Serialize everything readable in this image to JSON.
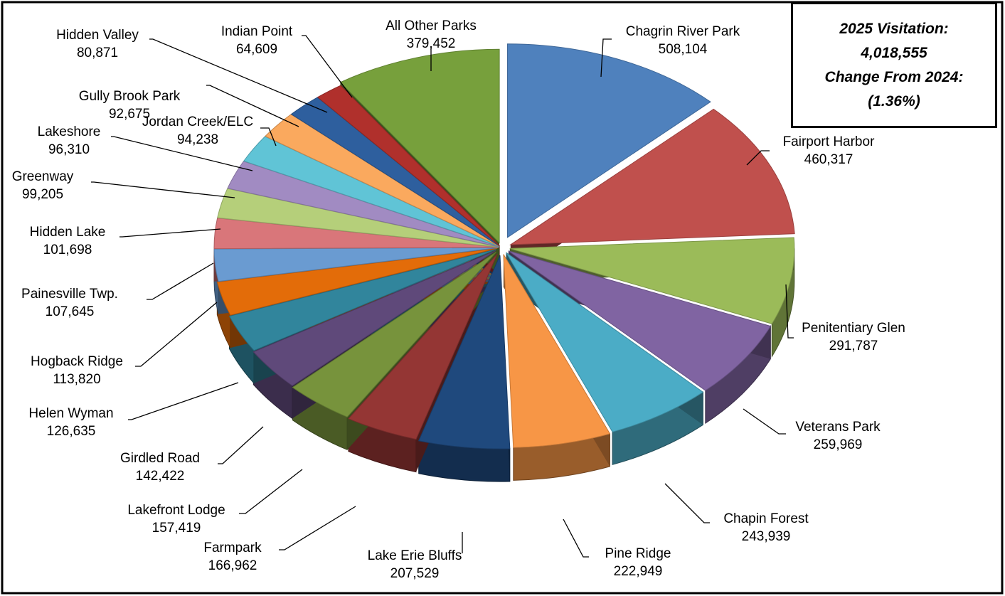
{
  "chart_data": {
    "type": "pie",
    "variant": "3d-exploded",
    "grid": false,
    "legend": "none",
    "slices": [
      {
        "label": "Chagrin River Park",
        "value": 508104,
        "value_label": "508,104",
        "color": "#4F81BD"
      },
      {
        "label": "Fairport Harbor",
        "value": 460317,
        "value_label": "460,317",
        "color": "#C0504D"
      },
      {
        "label": "Penitentiary Glen",
        "value": 291787,
        "value_label": "291,787",
        "color": "#9BBB59"
      },
      {
        "label": "Veterans Park",
        "value": 259969,
        "value_label": "259,969",
        "color": "#8064A2"
      },
      {
        "label": "Chapin Forest",
        "value": 243939,
        "value_label": "243,939",
        "color": "#4BACC6"
      },
      {
        "label": "Pine Ridge",
        "value": 222949,
        "value_label": "222,949",
        "color": "#F79646"
      },
      {
        "label": "Lake Erie Bluffs",
        "value": 207529,
        "value_label": "207,529",
        "color": "#1F497D"
      },
      {
        "label": "Farmpark",
        "value": 166962,
        "value_label": "166,962",
        "color": "#943634"
      },
      {
        "label": "Lakefront Lodge",
        "value": 157419,
        "value_label": "157,419",
        "color": "#77933C"
      },
      {
        "label": "Girdled Road",
        "value": 142422,
        "value_label": "142,422",
        "color": "#5F497A"
      },
      {
        "label": "Helen Wyman",
        "value": 126635,
        "value_label": "126,635",
        "color": "#31859C"
      },
      {
        "label": "Hogback Ridge",
        "value": 113820,
        "value_label": "113,820",
        "color": "#E36C09"
      },
      {
        "label": "Painesville Twp.",
        "value": 107645,
        "value_label": "107,645",
        "color": "#6A9BD1"
      },
      {
        "label": "Hidden Lake",
        "value": 101698,
        "value_label": "101,698",
        "color": "#D9767A"
      },
      {
        "label": "Greenway",
        "value": 99205,
        "value_label": "99,205",
        "color": "#B5CF7A"
      },
      {
        "label": "Lakeshore",
        "value": 96310,
        "value_label": "96,310",
        "color": "#A18BC2"
      },
      {
        "label": "Jordan Creek/ELC",
        "value": 94238,
        "value_label": "94,238",
        "color": "#60C4D6"
      },
      {
        "label": "Gully Brook Park",
        "value": 92675,
        "value_label": "92,675",
        "color": "#FAA95E"
      },
      {
        "label": "Hidden Valley",
        "value": 80871,
        "value_label": "80,871",
        "color": "#2E5F9E"
      },
      {
        "label": "Indian Point",
        "value": 64609,
        "value_label": "64,609",
        "color": "#B0302C"
      },
      {
        "label": "All Other Parks",
        "value": 379452,
        "value_label": "379,452",
        "color": "#77A03C"
      }
    ]
  },
  "summary": {
    "line1": "2025 Visitation:",
    "line2": "4,018,555",
    "line3": "Change From 2024:",
    "line4": "(1.36%)"
  }
}
